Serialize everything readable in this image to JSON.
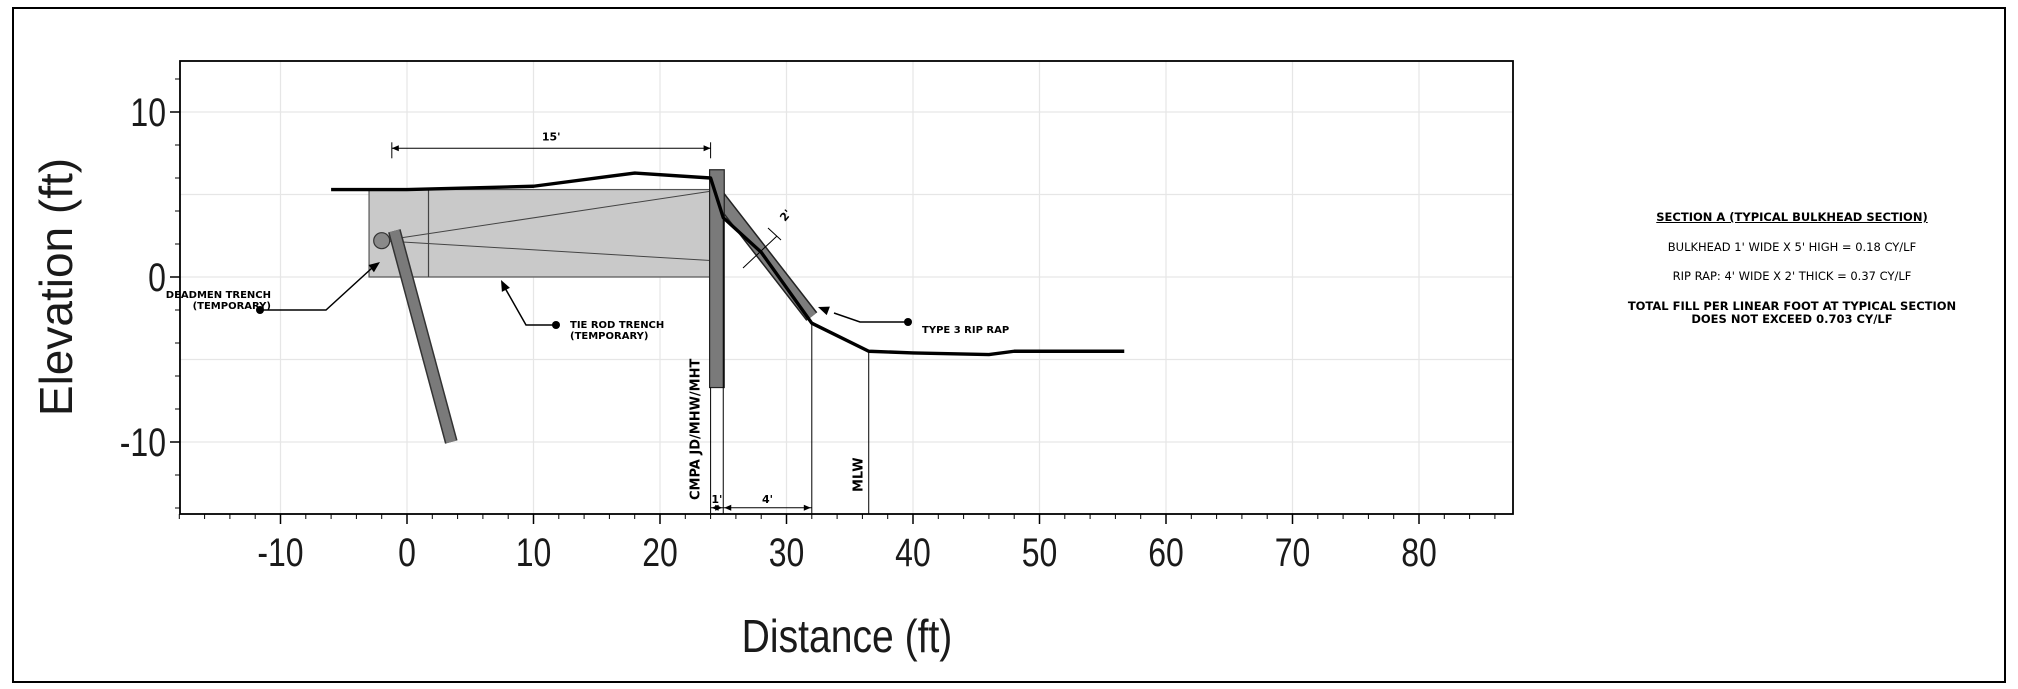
{
  "chart_data": {
    "type": "cross-section",
    "xlabel": "Distance (ft)",
    "ylabel": "Elevation (ft)",
    "xlim": [
      -18,
      87
    ],
    "ylim": [
      -14,
      13
    ],
    "xticks": [
      -10,
      0,
      10,
      20,
      30,
      40,
      50,
      60,
      70,
      80
    ],
    "yticks": [
      10,
      0,
      -10
    ],
    "grid": true,
    "profile": [
      [
        -6,
        5.3
      ],
      [
        0,
        5.3
      ],
      [
        10,
        5.5
      ],
      [
        16,
        6.1
      ],
      [
        18,
        6.3
      ],
      [
        24,
        6.0
      ],
      [
        25,
        3.6
      ],
      [
        28,
        1.5
      ],
      [
        32,
        -2.8
      ],
      [
        36.5,
        -4.5
      ],
      [
        40,
        -4.6
      ],
      [
        46,
        -4.7
      ],
      [
        48,
        -4.5
      ],
      [
        56.7,
        -4.5
      ]
    ],
    "trench_box": {
      "x": [
        -3,
        24
      ],
      "y": [
        0,
        5.3
      ]
    },
    "tie_rod_from": [
      -2,
      2.2
    ],
    "tie_rod_to": [
      24,
      5.2
    ],
    "bulkhead": {
      "x": [
        24,
        25
      ],
      "y": [
        -6.7,
        6.5
      ]
    },
    "deadman_pile": {
      "from": [
        -1,
        2.8
      ],
      "to": [
        3.5,
        -10
      ]
    },
    "riprap": {
      "from": [
        24.5,
        5
      ],
      "to": [
        32,
        -2.4
      ],
      "thickness_ft": 2
    },
    "vertical_lines_x": [
      24,
      25,
      32,
      36.5
    ],
    "dims": [
      {
        "label": "15'",
        "x1": -1.2,
        "x2": 24,
        "y": 7.8
      },
      {
        "label": "1'",
        "x1": 24,
        "x2": 25,
        "y": -13.5
      },
      {
        "label": "4'",
        "x1": 25,
        "x2": 32,
        "y": -13.5
      },
      {
        "label": "2'",
        "x1": 28.5,
        "x2": 29.5,
        "y": 3
      }
    ],
    "vertical_labels": [
      {
        "text": "CMPA JD/MHW/MHT",
        "x": 23.2
      },
      {
        "text": "MLW",
        "x": 36.1
      }
    ],
    "callouts": [
      {
        "lines": [
          "DEADMEN TRENCH",
          "(TEMPORARY)"
        ],
        "anchor": "end"
      },
      {
        "lines": [
          "TIE ROD TRENCH",
          "(TEMPORARY)"
        ],
        "anchor": "start"
      },
      {
        "lines": [
          "TYPE 3 RIP RAP"
        ],
        "anchor": "start"
      }
    ]
  },
  "notes": {
    "title": "SECTION A (TYPICAL BULKHEAD SECTION)",
    "bulkhead": "BULKHEAD 1' WIDE X 5' HIGH = 0.18 CY/LF",
    "riprap": "RIP RAP: 4' WIDE X 2' THICK = 0.37 CY/LF",
    "total_line1": "TOTAL FILL PER LINEAR FOOT AT TYPICAL SECTION",
    "total_line2": "DOES NOT EXCEED 0.703 CY/LF"
  }
}
